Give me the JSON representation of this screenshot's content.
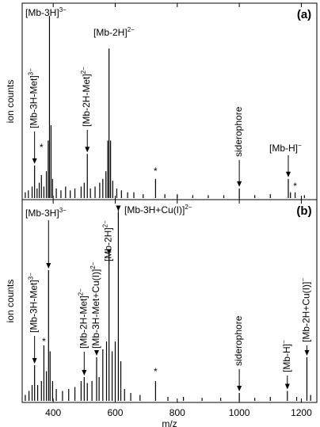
{
  "chart_data": [
    {
      "type": "stem",
      "panel_label": "(a)",
      "ylabel": "ion counts",
      "color": "#000000",
      "xlim": [
        300,
        1250
      ],
      "ylim": [
        0,
        100
      ],
      "x": [
        310,
        320,
        332,
        340,
        348,
        355,
        362,
        370,
        378,
        384,
        388,
        393,
        398,
        410,
        425,
        440,
        455,
        470,
        490,
        500,
        510,
        520,
        535,
        550,
        560,
        570,
        576,
        580,
        585,
        592,
        605,
        620,
        640,
        660,
        690,
        730,
        760,
        800,
        850,
        900,
        950,
        1000,
        1050,
        1100,
        1158,
        1165,
        1180,
        1210
      ],
      "values": [
        3,
        4,
        6,
        17,
        5,
        8,
        12,
        6,
        14,
        30,
        95,
        38,
        10,
        5,
        4,
        6,
        4,
        5,
        6,
        8,
        23,
        5,
        6,
        8,
        10,
        14,
        30,
        78,
        30,
        9,
        5,
        4,
        3,
        3,
        2,
        10,
        2,
        2,
        1.5,
        1.5,
        1.5,
        5,
        1.5,
        2,
        10,
        3,
        3,
        1.5
      ],
      "annotations": [
        {
          "text": "[Mb-3H]",
          "sup": "3−",
          "x": 388
        },
        {
          "text": "[Mb-3H-Met]",
          "sup": "3−",
          "x": 340
        },
        {
          "text": "*",
          "x": 362
        },
        {
          "text": "[Mb-2H-Met]",
          "sup": "2−",
          "x": 510
        },
        {
          "text": "[Mb-2H]",
          "sup": "2−",
          "x": 580
        },
        {
          "text": "*",
          "x": 730
        },
        {
          "text": "siderophore",
          "x": 1000
        },
        {
          "text": "[Mb-H]",
          "sup": "−",
          "x": 1158
        },
        {
          "text": "*",
          "x": 1180
        }
      ]
    },
    {
      "type": "stem",
      "panel_label": "(b)",
      "ylabel": "ion counts",
      "xlabel": "m/z",
      "color": "#000000",
      "xlim": [
        300,
        1250
      ],
      "ylim": [
        0,
        100
      ],
      "xticks": [
        400,
        600,
        800,
        1000,
        1200
      ],
      "x": [
        310,
        322,
        332,
        340,
        350,
        362,
        370,
        378,
        385,
        390,
        398,
        410,
        430,
        450,
        470,
        490,
        500,
        510,
        525,
        540,
        548,
        560,
        572,
        580,
        590,
        600,
        610,
        618,
        630,
        650,
        680,
        730,
        770,
        820,
        880,
        940,
        1000,
        1050,
        1100,
        1155,
        1185,
        1218,
        1230
      ],
      "values": [
        3,
        5,
        8,
        18,
        8,
        10,
        28,
        15,
        66,
        25,
        10,
        6,
        5,
        6,
        7,
        10,
        12,
        9,
        10,
        22,
        12,
        26,
        30,
        73,
        25,
        30,
        95,
        20,
        6,
        4,
        3,
        10,
        2,
        2,
        1.5,
        1.5,
        4,
        1.5,
        2,
        5,
        2,
        22,
        3
      ],
      "annotations": [
        {
          "text": "[Mb-3H]",
          "sup": "3−",
          "x": 385
        },
        {
          "text": "[Mb-3H-Met]",
          "sup": "3−",
          "x": 340
        },
        {
          "text": "*",
          "x": 370
        },
        {
          "text": "[Mb-2H-Met]",
          "sup": "2−",
          "x": 500
        },
        {
          "text": "[Mb-3H-Met+Cu(I)]",
          "sup": "2−",
          "x": 540
        },
        {
          "text": "[Mb-2H]",
          "sup": "2−",
          "x": 580
        },
        {
          "text": "[Mb-3H+Cu(I)]",
          "sup": "2−",
          "x": 610
        },
        {
          "text": "*",
          "x": 730
        },
        {
          "text": "siderophore",
          "x": 1000
        },
        {
          "text": "[Mb-H]",
          "sup": "−",
          "x": 1155
        },
        {
          "text": "[Mb-2H+Cu(I)]",
          "sup": "−",
          "x": 1218
        }
      ]
    }
  ]
}
